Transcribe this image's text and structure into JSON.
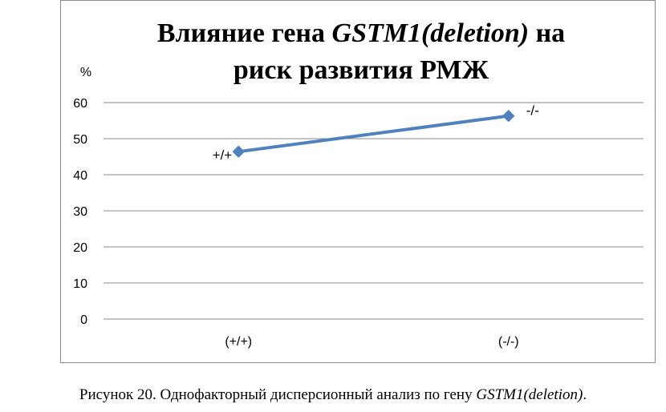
{
  "chart_data": {
    "type": "line",
    "title_line1_prefix": "Влияние гена ",
    "title_line1_gene": "GSTM1(deletion)",
    "title_line1_suffix": " на",
    "title_line2": "риск развития РМЖ",
    "ylabel": "%",
    "xlabel": "",
    "categories": [
      "(+/+)",
      "(-/-)"
    ],
    "series": [
      {
        "values": [
          46.4,
          56.3
        ],
        "data_labels": [
          "+/+",
          "-/-"
        ]
      }
    ],
    "ylim": [
      0,
      60
    ],
    "yticks": [
      0,
      10,
      20,
      30,
      40,
      50,
      60
    ],
    "grid": true,
    "legend": "none",
    "line_color": "#4f81bd",
    "marker": "diamond"
  },
  "caption": {
    "text": "Рисунок 20. Однофакторный дисперсионный анализ по гену ",
    "gene": "GSTM1(deletion)",
    "end": "."
  }
}
